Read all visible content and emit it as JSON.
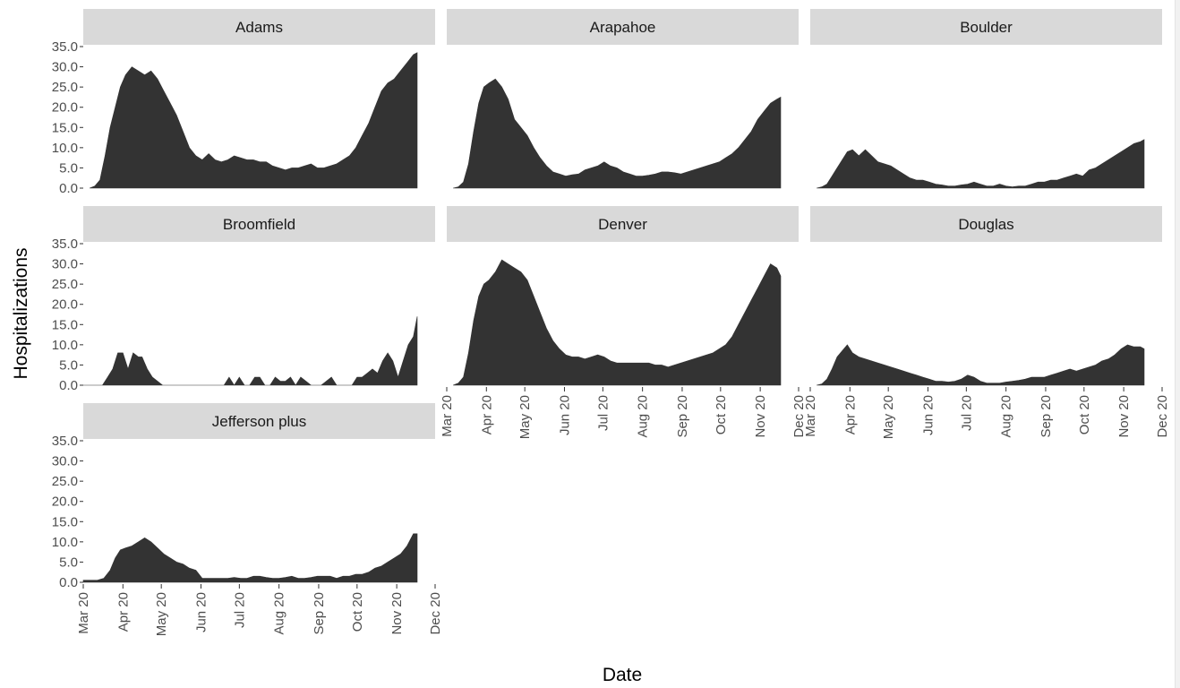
{
  "chart_data": {
    "type": "area",
    "xlabel": "Date",
    "ylabel": "Hospitalizations",
    "ylim": [
      0,
      35
    ],
    "y_ticks": [
      "0.0",
      "5.0",
      "10.0",
      "15.0",
      "20.0",
      "25.0",
      "30.0",
      "35.0"
    ],
    "x_ticks": [
      "Mar 20",
      "Apr 20",
      "May 20",
      "Jun 20",
      "Jul 20",
      "Aug 20",
      "Sep 20",
      "Oct 20",
      "Nov 20",
      "Dec 20"
    ],
    "x_tick_dates": [
      "2020-03-01",
      "2020-04-01",
      "2020-05-01",
      "2020-06-01",
      "2020-07-01",
      "2020-08-01",
      "2020-09-01",
      "2020-10-01",
      "2020-11-01",
      "2020-12-01"
    ],
    "xlim": [
      "2020-03-01",
      "2020-12-01"
    ],
    "grid": false,
    "facets": [
      {
        "name": "Adams",
        "x": [
          "2020-03-06",
          "2020-03-10",
          "2020-03-14",
          "2020-03-18",
          "2020-03-22",
          "2020-03-26",
          "2020-03-30",
          "2020-04-03",
          "2020-04-08",
          "2020-04-13",
          "2020-04-18",
          "2020-04-23",
          "2020-04-28",
          "2020-05-03",
          "2020-05-08",
          "2020-05-13",
          "2020-05-18",
          "2020-05-23",
          "2020-05-28",
          "2020-06-02",
          "2020-06-07",
          "2020-06-12",
          "2020-06-17",
          "2020-06-22",
          "2020-06-27",
          "2020-07-02",
          "2020-07-07",
          "2020-07-12",
          "2020-07-17",
          "2020-07-22",
          "2020-07-27",
          "2020-08-01",
          "2020-08-06",
          "2020-08-11",
          "2020-08-16",
          "2020-08-21",
          "2020-08-26",
          "2020-08-31",
          "2020-09-05",
          "2020-09-10",
          "2020-09-15",
          "2020-09-20",
          "2020-09-25",
          "2020-09-30",
          "2020-10-05",
          "2020-10-10",
          "2020-10-15",
          "2020-10-20",
          "2020-10-25",
          "2020-10-30",
          "2020-11-04",
          "2020-11-09",
          "2020-11-14",
          "2020-11-17"
        ],
        "y": [
          0,
          0.5,
          2,
          8,
          15,
          20,
          25,
          28,
          30,
          29,
          28,
          29,
          27,
          24,
          21,
          18,
          14,
          10,
          8,
          7,
          8.5,
          7,
          6.5,
          7,
          8,
          7.5,
          7,
          7,
          6.5,
          6.5,
          5.5,
          5,
          4.5,
          5,
          5,
          5.5,
          6,
          5,
          5,
          5.5,
          6,
          7,
          8,
          10,
          13,
          16,
          20,
          24,
          26,
          27,
          29,
          31,
          33,
          33.5
        ]
      },
      {
        "name": "Arapahoe",
        "x": [
          "2020-03-06",
          "2020-03-10",
          "2020-03-14",
          "2020-03-18",
          "2020-03-22",
          "2020-03-26",
          "2020-03-30",
          "2020-04-03",
          "2020-04-08",
          "2020-04-13",
          "2020-04-18",
          "2020-04-23",
          "2020-04-28",
          "2020-05-03",
          "2020-05-08",
          "2020-05-13",
          "2020-05-18",
          "2020-05-23",
          "2020-05-28",
          "2020-06-02",
          "2020-06-07",
          "2020-06-12",
          "2020-06-17",
          "2020-06-22",
          "2020-06-27",
          "2020-07-02",
          "2020-07-07",
          "2020-07-12",
          "2020-07-17",
          "2020-07-22",
          "2020-07-27",
          "2020-08-01",
          "2020-08-06",
          "2020-08-11",
          "2020-08-16",
          "2020-08-21",
          "2020-08-26",
          "2020-08-31",
          "2020-09-05",
          "2020-09-10",
          "2020-09-15",
          "2020-09-20",
          "2020-09-25",
          "2020-09-30",
          "2020-10-05",
          "2020-10-10",
          "2020-10-15",
          "2020-10-20",
          "2020-10-25",
          "2020-10-30",
          "2020-11-04",
          "2020-11-09",
          "2020-11-14",
          "2020-11-17"
        ],
        "y": [
          0,
          0.3,
          1.5,
          6,
          14,
          21,
          25,
          26,
          27,
          25,
          22,
          17,
          15,
          13,
          10,
          7.5,
          5.5,
          4,
          3.5,
          3,
          3.3,
          3.5,
          4.5,
          5,
          5.5,
          6.5,
          5.5,
          5,
          4,
          3.5,
          3,
          3,
          3.2,
          3.5,
          4,
          4,
          3.8,
          3.5,
          4,
          4.5,
          5,
          5.5,
          6,
          6.5,
          7.5,
          8.5,
          10,
          12,
          14,
          17,
          19,
          21,
          22,
          22.5
        ]
      },
      {
        "name": "Boulder",
        "x": [
          "2020-03-06",
          "2020-03-10",
          "2020-03-14",
          "2020-03-18",
          "2020-03-22",
          "2020-03-26",
          "2020-03-30",
          "2020-04-03",
          "2020-04-08",
          "2020-04-13",
          "2020-04-18",
          "2020-04-23",
          "2020-04-28",
          "2020-05-03",
          "2020-05-08",
          "2020-05-13",
          "2020-05-18",
          "2020-05-23",
          "2020-05-28",
          "2020-06-02",
          "2020-06-07",
          "2020-06-12",
          "2020-06-17",
          "2020-06-22",
          "2020-06-27",
          "2020-07-02",
          "2020-07-07",
          "2020-07-12",
          "2020-07-17",
          "2020-07-22",
          "2020-07-27",
          "2020-08-01",
          "2020-08-06",
          "2020-08-11",
          "2020-08-16",
          "2020-08-21",
          "2020-08-26",
          "2020-08-31",
          "2020-09-05",
          "2020-09-10",
          "2020-09-15",
          "2020-09-20",
          "2020-09-25",
          "2020-09-30",
          "2020-10-05",
          "2020-10-10",
          "2020-10-15",
          "2020-10-20",
          "2020-10-25",
          "2020-10-30",
          "2020-11-04",
          "2020-11-09",
          "2020-11-14",
          "2020-11-17"
        ],
        "y": [
          0,
          0.3,
          1,
          3,
          5,
          7,
          9,
          9.5,
          8,
          9.5,
          8,
          6.5,
          6,
          5.5,
          4.5,
          3.5,
          2.5,
          2,
          2,
          1.5,
          1,
          0.8,
          0.5,
          0.5,
          0.8,
          1,
          1.5,
          1,
          0.5,
          0.5,
          1,
          0.5,
          0.3,
          0.5,
          0.5,
          1,
          1.5,
          1.5,
          2,
          2,
          2.5,
          3,
          3.5,
          3,
          4.5,
          5,
          6,
          7,
          8,
          9,
          10,
          11,
          11.5,
          12
        ]
      },
      {
        "name": "Broomfield",
        "x": [
          "2020-03-01",
          "2020-03-05",
          "2020-03-09",
          "2020-03-12",
          "2020-03-16",
          "2020-03-20",
          "2020-03-24",
          "2020-03-28",
          "2020-04-01",
          "2020-04-05",
          "2020-04-09",
          "2020-04-13",
          "2020-04-16",
          "2020-04-20",
          "2020-04-24",
          "2020-04-28",
          "2020-05-02",
          "2020-05-06",
          "2020-05-10",
          "2020-05-14",
          "2020-05-18",
          "2020-05-22",
          "2020-05-26",
          "2020-05-30",
          "2020-06-03",
          "2020-06-07",
          "2020-06-11",
          "2020-06-15",
          "2020-06-19",
          "2020-06-23",
          "2020-06-27",
          "2020-07-01",
          "2020-07-05",
          "2020-07-09",
          "2020-07-13",
          "2020-07-17",
          "2020-07-21",
          "2020-07-25",
          "2020-07-29",
          "2020-08-02",
          "2020-08-06",
          "2020-08-10",
          "2020-08-14",
          "2020-08-18",
          "2020-08-22",
          "2020-08-26",
          "2020-08-30",
          "2020-09-03",
          "2020-09-07",
          "2020-09-11",
          "2020-09-15",
          "2020-09-19",
          "2020-09-23",
          "2020-09-27",
          "2020-10-01",
          "2020-10-05",
          "2020-10-09",
          "2020-10-13",
          "2020-10-17",
          "2020-10-21",
          "2020-10-25",
          "2020-10-29",
          "2020-11-02",
          "2020-11-06",
          "2020-11-10",
          "2020-11-14",
          "2020-11-17"
        ],
        "y": [
          0,
          0,
          0,
          0,
          0,
          2,
          4,
          8,
          8,
          4,
          8,
          7,
          7,
          4,
          2,
          1,
          0,
          0,
          0,
          0,
          0,
          0,
          0,
          0,
          0,
          0,
          0,
          0,
          0,
          2,
          0,
          2,
          0,
          0,
          2,
          2,
          0,
          0,
          2,
          1,
          1,
          2,
          0,
          2,
          1,
          0,
          0,
          0,
          1,
          2,
          0,
          0,
          0,
          0,
          2,
          2,
          3,
          4,
          3,
          6,
          8,
          6,
          2,
          6,
          10,
          12,
          17
        ]
      },
      {
        "name": "Denver",
        "x": [
          "2020-03-06",
          "2020-03-10",
          "2020-03-14",
          "2020-03-18",
          "2020-03-22",
          "2020-03-26",
          "2020-03-30",
          "2020-04-03",
          "2020-04-08",
          "2020-04-13",
          "2020-04-18",
          "2020-04-23",
          "2020-04-28",
          "2020-05-03",
          "2020-05-08",
          "2020-05-13",
          "2020-05-18",
          "2020-05-23",
          "2020-05-28",
          "2020-06-02",
          "2020-06-07",
          "2020-06-12",
          "2020-06-17",
          "2020-06-22",
          "2020-06-27",
          "2020-07-02",
          "2020-07-07",
          "2020-07-12",
          "2020-07-17",
          "2020-07-22",
          "2020-07-27",
          "2020-08-01",
          "2020-08-06",
          "2020-08-11",
          "2020-08-16",
          "2020-08-21",
          "2020-08-26",
          "2020-08-31",
          "2020-09-05",
          "2020-09-10",
          "2020-09-15",
          "2020-09-20",
          "2020-09-25",
          "2020-09-30",
          "2020-10-05",
          "2020-10-10",
          "2020-10-15",
          "2020-10-20",
          "2020-10-25",
          "2020-10-30",
          "2020-11-04",
          "2020-11-09",
          "2020-11-14",
          "2020-11-17"
        ],
        "y": [
          0,
          0.5,
          2,
          8,
          16,
          22,
          25,
          26,
          28,
          31,
          30,
          29,
          28,
          26,
          22,
          18,
          14,
          11,
          9,
          7.5,
          7,
          7,
          6.5,
          7,
          7.5,
          7,
          6,
          5.5,
          5.5,
          5.5,
          5.5,
          5.5,
          5.5,
          5,
          5,
          4.5,
          5,
          5.5,
          6,
          6.5,
          7,
          7.5,
          8,
          9,
          10,
          12,
          15,
          18,
          21,
          24,
          27,
          30,
          29,
          27
        ]
      },
      {
        "name": "Douglas",
        "x": [
          "2020-03-06",
          "2020-03-10",
          "2020-03-14",
          "2020-03-18",
          "2020-03-22",
          "2020-03-26",
          "2020-03-30",
          "2020-04-03",
          "2020-04-08",
          "2020-04-13",
          "2020-04-18",
          "2020-04-23",
          "2020-04-28",
          "2020-05-03",
          "2020-05-08",
          "2020-05-13",
          "2020-05-18",
          "2020-05-23",
          "2020-05-28",
          "2020-06-02",
          "2020-06-07",
          "2020-06-12",
          "2020-06-17",
          "2020-06-22",
          "2020-06-27",
          "2020-07-02",
          "2020-07-07",
          "2020-07-12",
          "2020-07-17",
          "2020-07-22",
          "2020-07-27",
          "2020-08-01",
          "2020-08-06",
          "2020-08-11",
          "2020-08-16",
          "2020-08-21",
          "2020-08-26",
          "2020-08-31",
          "2020-09-05",
          "2020-09-10",
          "2020-09-15",
          "2020-09-20",
          "2020-09-25",
          "2020-09-30",
          "2020-10-05",
          "2020-10-10",
          "2020-10-15",
          "2020-10-20",
          "2020-10-25",
          "2020-10-30",
          "2020-11-04",
          "2020-11-09",
          "2020-11-14",
          "2020-11-17"
        ],
        "y": [
          0,
          0.3,
          1.5,
          4,
          7,
          8.5,
          10,
          8,
          7,
          6.5,
          6,
          5.5,
          5,
          4.5,
          4,
          3.5,
          3,
          2.5,
          2,
          1.5,
          1,
          1,
          0.8,
          1,
          1.5,
          2.5,
          2,
          1,
          0.5,
          0.5,
          0.5,
          0.8,
          1,
          1.2,
          1.5,
          2,
          2,
          2,
          2.5,
          3,
          3.5,
          4,
          3.5,
          4,
          4.5,
          5,
          6,
          6.5,
          7.5,
          9,
          10,
          9.5,
          9.5,
          9
        ]
      },
      {
        "name": "Jefferson plus",
        "x": [
          "2020-03-01",
          "2020-03-06",
          "2020-03-12",
          "2020-03-17",
          "2020-03-22",
          "2020-03-26",
          "2020-03-30",
          "2020-04-03",
          "2020-04-08",
          "2020-04-13",
          "2020-04-18",
          "2020-04-23",
          "2020-04-28",
          "2020-05-03",
          "2020-05-08",
          "2020-05-13",
          "2020-05-18",
          "2020-05-23",
          "2020-05-28",
          "2020-06-02",
          "2020-06-07",
          "2020-06-12",
          "2020-06-17",
          "2020-06-22",
          "2020-06-27",
          "2020-07-02",
          "2020-07-07",
          "2020-07-12",
          "2020-07-17",
          "2020-07-22",
          "2020-07-27",
          "2020-08-01",
          "2020-08-06",
          "2020-08-11",
          "2020-08-16",
          "2020-08-21",
          "2020-08-26",
          "2020-08-31",
          "2020-09-05",
          "2020-09-10",
          "2020-09-15",
          "2020-09-20",
          "2020-09-25",
          "2020-09-30",
          "2020-10-05",
          "2020-10-10",
          "2020-10-15",
          "2020-10-20",
          "2020-10-25",
          "2020-10-30",
          "2020-11-04",
          "2020-11-09",
          "2020-11-14",
          "2020-11-17"
        ],
        "y": [
          0.5,
          0.5,
          0.5,
          1,
          3,
          6,
          8,
          8.5,
          9,
          10,
          11,
          10,
          8.5,
          7,
          6,
          5,
          4.5,
          3.5,
          3,
          1,
          1,
          1,
          1,
          1,
          1.2,
          1,
          1,
          1.5,
          1.5,
          1.2,
          1,
          1,
          1.2,
          1.5,
          1,
          1,
          1.2,
          1.5,
          1.5,
          1.5,
          1,
          1.5,
          1.5,
          2,
          2,
          2.5,
          3.5,
          4,
          5,
          6,
          7,
          9,
          12,
          12
        ]
      }
    ]
  }
}
